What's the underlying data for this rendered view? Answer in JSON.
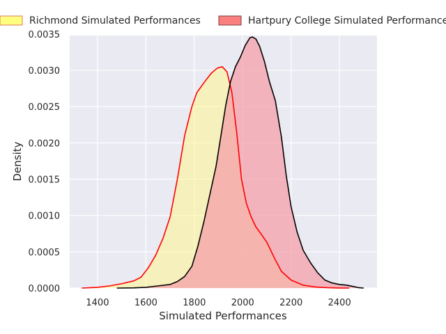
{
  "chart_data": {
    "type": "area",
    "chart_kind": "kde-density",
    "xlabel": "Simulated Performances",
    "ylabel": "Density",
    "xlim": [
      1285,
      2555
    ],
    "ylim": [
      0,
      0.00348
    ],
    "xticks": [
      1400,
      1600,
      1800,
      2000,
      2200,
      2400
    ],
    "yticks": [
      0.0,
      0.0005,
      0.001,
      0.0015,
      0.002,
      0.0025,
      0.003,
      0.0035
    ],
    "ytick_labels": [
      "0.0000",
      "0.0005",
      "0.0010",
      "0.0015",
      "0.0020",
      "0.0025",
      "0.0030",
      "0.0035"
    ],
    "grid": true,
    "background": "#eaeaf2",
    "legend_placement": "top",
    "series": [
      {
        "name": "Richmond Simulated Performances",
        "fill": "#fff68f",
        "fill_opacity": 0.55,
        "line": "#ff0000",
        "legend_face": "#ffff7f",
        "legend_edge": "#e07a5f",
        "points": [
          [
            1335,
            0.0
          ],
          [
            1400,
            1e-05
          ],
          [
            1450,
            3e-05
          ],
          [
            1500,
            6e-05
          ],
          [
            1550,
            0.0001
          ],
          [
            1580,
            0.00015
          ],
          [
            1610,
            0.00028
          ],
          [
            1640,
            0.00045
          ],
          [
            1670,
            0.00068
          ],
          [
            1700,
            0.00098
          ],
          [
            1730,
            0.0015
          ],
          [
            1760,
            0.0021
          ],
          [
            1790,
            0.0025
          ],
          [
            1810,
            0.00269
          ],
          [
            1840,
            0.00283
          ],
          [
            1870,
            0.00296
          ],
          [
            1895,
            0.00303
          ],
          [
            1915,
            0.00305
          ],
          [
            1935,
            0.00298
          ],
          [
            1955,
            0.0027
          ],
          [
            1975,
            0.00215
          ],
          [
            1995,
            0.0015
          ],
          [
            2015,
            0.00117
          ],
          [
            2035,
            0.00098
          ],
          [
            2055,
            0.00084
          ],
          [
            2075,
            0.00075
          ],
          [
            2100,
            0.00063
          ],
          [
            2130,
            0.00042
          ],
          [
            2160,
            0.00023
          ],
          [
            2200,
            0.00011
          ],
          [
            2250,
            4e-05
          ],
          [
            2300,
            1.5e-05
          ],
          [
            2350,
            5e-06
          ],
          [
            2400,
            1e-06
          ],
          [
            2440,
            0.0
          ]
        ]
      },
      {
        "name": "Hartpury College Simulated Performances",
        "fill": "#f4a0aa",
        "fill_opacity": 0.75,
        "line": "#000000",
        "legend_face": "#fa8080",
        "legend_edge": "#7a3c3c",
        "points": [
          [
            1480,
            0.0
          ],
          [
            1550,
            3e-06
          ],
          [
            1600,
            1e-05
          ],
          [
            1650,
            3e-05
          ],
          [
            1700,
            5e-05
          ],
          [
            1730,
            9e-05
          ],
          [
            1760,
            0.00016
          ],
          [
            1790,
            0.0003
          ],
          [
            1815,
            0.00058
          ],
          [
            1840,
            0.00092
          ],
          [
            1865,
            0.0013
          ],
          [
            1890,
            0.00168
          ],
          [
            1910,
            0.0021
          ],
          [
            1930,
            0.00252
          ],
          [
            1950,
            0.00285
          ],
          [
            1970,
            0.00305
          ],
          [
            1990,
            0.00318
          ],
          [
            2010,
            0.00334
          ],
          [
            2030,
            0.00345
          ],
          [
            2040,
            0.00346
          ],
          [
            2055,
            0.00343
          ],
          [
            2070,
            0.00333
          ],
          [
            2090,
            0.00312
          ],
          [
            2110,
            0.00285
          ],
          [
            2135,
            0.00258
          ],
          [
            2160,
            0.00208
          ],
          [
            2180,
            0.00155
          ],
          [
            2200,
            0.00112
          ],
          [
            2225,
            0.00077
          ],
          [
            2250,
            0.00052
          ],
          [
            2280,
            0.00035
          ],
          [
            2310,
            0.00021
          ],
          [
            2340,
            0.00011
          ],
          [
            2370,
            7e-05
          ],
          [
            2400,
            5e-05
          ],
          [
            2430,
            4e-05
          ],
          [
            2460,
            2e-05
          ],
          [
            2480,
            5e-06
          ],
          [
            2500,
            0.0
          ]
        ]
      }
    ]
  }
}
